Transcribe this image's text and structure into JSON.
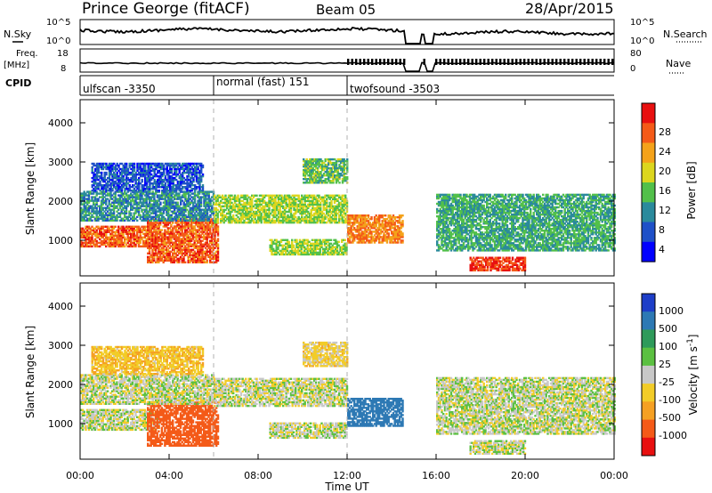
{
  "header": {
    "station": "Prince George (fitACF)",
    "beam": "Beam 05",
    "date": "28/Apr/2015"
  },
  "top_panels": {
    "nsky": {
      "label": "N.Sky",
      "ticks": [
        "10^5",
        "10^0"
      ]
    },
    "nsearch": {
      "label": "N.Search",
      "ticks": [
        "10^5",
        "10^0"
      ]
    },
    "freq": {
      "label_line1": "Freq.",
      "label_line2": "[MHz]",
      "ticks": [
        "18",
        "8"
      ]
    },
    "nave": {
      "label": "Nave",
      "ticks": [
        "80",
        "0"
      ]
    },
    "cpid": {
      "label": "CPID",
      "segments": [
        {
          "name": "ulfscan -3350",
          "start": 0,
          "end": 6
        },
        {
          "name": "normal (fast) 151",
          "start": 6,
          "end": 12
        },
        {
          "name": "twofsound -3503",
          "start": 12,
          "end": 24
        }
      ]
    }
  },
  "power_panel": {
    "ylabel": "Slant Range [km]",
    "yticks": [
      "4000",
      "3000",
      "2000",
      "1000"
    ],
    "colorbar_label": "Power [dB]",
    "colorbar_ticks": [
      "28",
      "24",
      "20",
      "16",
      "12",
      "8",
      "4"
    ]
  },
  "velocity_panel": {
    "ylabel": "Slant Range [km]",
    "yticks": [
      "4000",
      "3000",
      "2000",
      "1000"
    ],
    "colorbar_label": "Velocity [m s",
    "colorbar_label_sup": "-1",
    "colorbar_label_end": "]",
    "colorbar_ticks": [
      "1000",
      "500",
      "100",
      "25",
      "-25",
      "-100",
      "-500",
      "-1000"
    ]
  },
  "x_axis": {
    "label": "Time UT",
    "ticks": [
      "00:00",
      "04:00",
      "08:00",
      "12:00",
      "16:00",
      "20:00",
      "00:00"
    ]
  },
  "chart_data": {
    "type": "heatmap",
    "title": "Prince George (fitACF)   Beam 05   28/Apr/2015",
    "xlabel": "Time UT",
    "ylabel": "Slant Range [km]",
    "xlim_hours": [
      0,
      24
    ],
    "ylim_km": [
      180,
      4600
    ],
    "mode_changes_hours": [
      6,
      12
    ],
    "data_gaps_hours": [
      [
        14.6,
        15.3
      ],
      [
        15.5,
        15.9
      ]
    ],
    "power_colorscale": {
      "levels_db": [
        4,
        8,
        12,
        16,
        20,
        24,
        28
      ],
      "colors": [
        "#0000ff",
        "#1e50c8",
        "#2a8a9c",
        "#52c04a",
        "#dcd61e",
        "#f4a21a",
        "#f45a18",
        "#e81010"
      ]
    },
    "velocity_colorscale": {
      "levels_ms": [
        -1000,
        -500,
        -100,
        -25,
        25,
        100,
        500,
        1000
      ],
      "colors": [
        "#e81010",
        "#f45a18",
        "#f5a023",
        "#f2cc28",
        "#c8c8c8",
        "#5bc041",
        "#2e9a5a",
        "#2d79b4",
        "#1e3ec8"
      ]
    },
    "echo_regions": [
      {
        "t": [
          0,
          3.5
        ],
        "range_km": [
          900,
          1400
        ],
        "power_db": 26,
        "velocity_ms": 0
      },
      {
        "t": [
          3.0,
          6.2
        ],
        "range_km": [
          500,
          1600
        ],
        "power_db": 26,
        "velocity_ms": -600
      },
      {
        "t": [
          0,
          6
        ],
        "range_km": [
          1550,
          2300
        ],
        "power_db": 10,
        "velocity_ms": 0
      },
      {
        "t": [
          0.5,
          5.5
        ],
        "range_km": [
          2300,
          3000
        ],
        "power_db": 6,
        "velocity_ms": -80
      },
      {
        "t": [
          6,
          12
        ],
        "range_km": [
          1500,
          2200
        ],
        "power_db": 16,
        "velocity_ms": 0
      },
      {
        "t": [
          8.5,
          12
        ],
        "range_km": [
          700,
          1100
        ],
        "power_db": 16,
        "velocity_ms": 0
      },
      {
        "t": [
          10,
          12
        ],
        "range_km": [
          2500,
          3100
        ],
        "power_db": 14,
        "velocity_ms": -50
      },
      {
        "t": [
          12,
          14.5
        ],
        "range_km": [
          1000,
          1700
        ],
        "power_db": 24,
        "velocity_ms": 800
      },
      {
        "t": [
          16,
          24
        ],
        "range_km": [
          800,
          2200
        ],
        "power_db": 12,
        "velocity_ms": 0
      },
      {
        "t": [
          17.5,
          20
        ],
        "range_km": [
          300,
          650
        ],
        "power_db": 28,
        "velocity_ms": 0
      }
    ]
  }
}
